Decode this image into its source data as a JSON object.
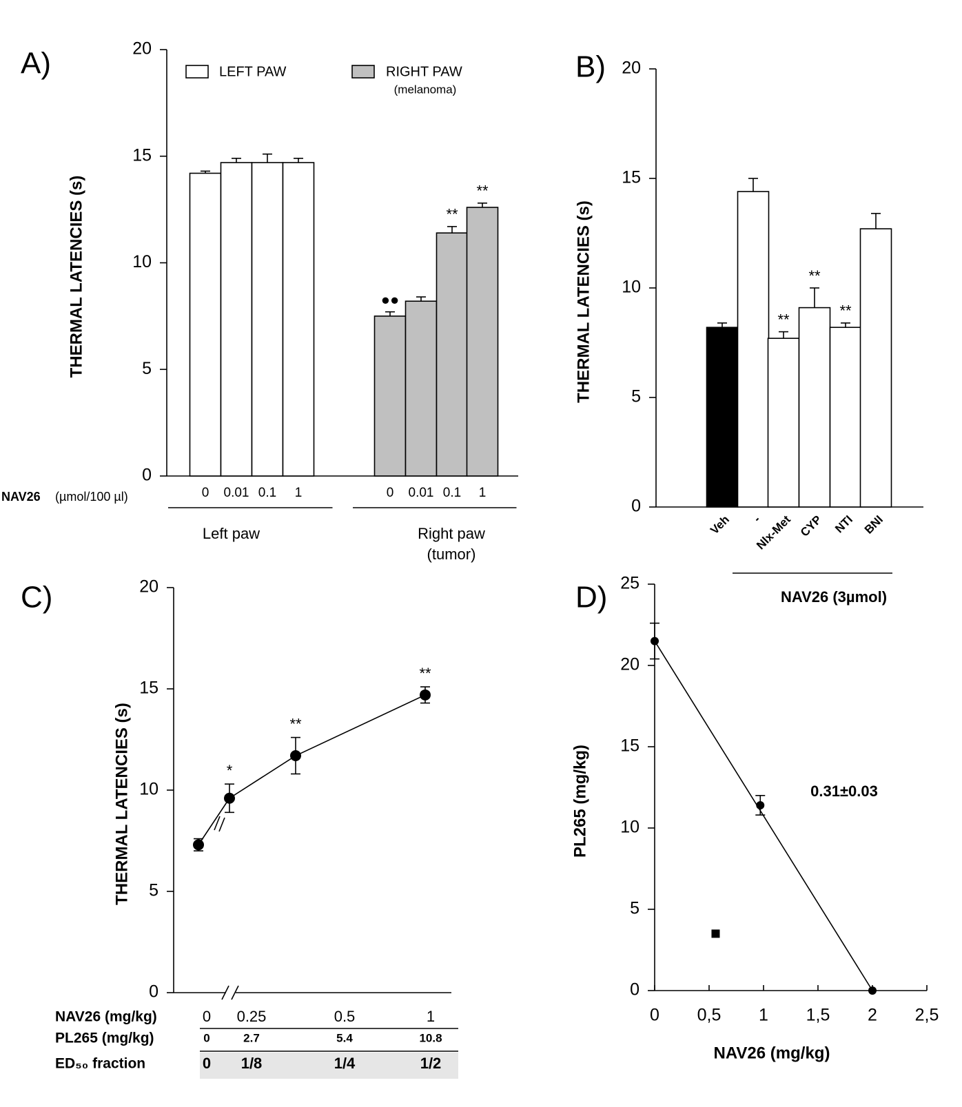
{
  "chart_data": [
    {
      "type": "bar",
      "panel_label": "A)",
      "y_label": "THERMAL LATENCIES (s)",
      "x_label": [
        "NAV26",
        "(µmol/100 µl)"
      ],
      "categories": [
        "0",
        "0.01",
        "0.1",
        "1",
        "0",
        "0.01",
        "0.1",
        "1"
      ],
      "groups": [
        [
          "Left paw"
        ],
        [
          "Right paw",
          "(tumor)"
        ]
      ],
      "series": [
        {
          "name": "LEFT PAW",
          "color": "#ffffff",
          "values": [
            14.2,
            14.7,
            14.7,
            14.7,
            null,
            null,
            null,
            null
          ],
          "errors": [
            0.1,
            0.2,
            0.4,
            0.2,
            null,
            null,
            null,
            null
          ],
          "annotations": [
            null,
            null,
            null,
            null,
            null,
            null,
            null,
            null
          ]
        },
        {
          "name": "RIGHT PAW",
          "legend_note": "(melanoma)",
          "color": "#c0c0c0",
          "values": [
            null,
            null,
            null,
            null,
            7.5,
            8.2,
            11.4,
            12.6
          ],
          "errors": [
            null,
            null,
            null,
            null,
            0.2,
            0.2,
            0.3,
            0.2
          ],
          "annotations": [
            null,
            null,
            null,
            null,
            "●●",
            null,
            "**",
            "**"
          ]
        }
      ],
      "ylim": [
        0,
        20
      ],
      "yticks": [
        0,
        5,
        10,
        15,
        20
      ]
    },
    {
      "type": "bar",
      "panel_label": "B)",
      "y_label": "THERMAL LATENCIES (s)",
      "categories": [
        "Veh",
        "-",
        "Nlx-Met",
        "CYP",
        "NTI",
        "BNI"
      ],
      "values": [
        8.2,
        14.4,
        7.7,
        9.1,
        8.2,
        12.7
      ],
      "errors": [
        0.2,
        0.6,
        0.3,
        0.9,
        0.2,
        0.7
      ],
      "colors": [
        "#000000",
        "#ffffff",
        "#ffffff",
        "#ffffff",
        "#ffffff",
        "#ffffff"
      ],
      "annotations": [
        null,
        null,
        "**",
        "**",
        "**",
        null
      ],
      "group_label": "NAV26 (3µmol)",
      "ylim": [
        0,
        20
      ],
      "yticks": [
        0,
        5,
        10,
        15,
        20
      ]
    },
    {
      "type": "line",
      "panel_label": "C)",
      "y_label": "THERMAL LATENCIES (s)",
      "categories": [
        "0",
        "0.25",
        "0.5",
        "1"
      ],
      "values": [
        7.3,
        9.6,
        11.7,
        14.7
      ],
      "errors": [
        0.3,
        0.7,
        0.9,
        0.4
      ],
      "annotations": [
        null,
        "*",
        "**",
        "**"
      ],
      "color": "#000000",
      "line_color": "#808080",
      "table": {
        "row_labels": [
          "NAV26 (mg/kg)",
          "PL265 (mg/kg)",
          "ED₅₀ fraction"
        ],
        "rows": [
          [
            "0",
            "2.7",
            "5.4",
            "10.8"
          ],
          [
            "0",
            "1/8",
            "1/4",
            "1/2"
          ]
        ]
      },
      "ylim": [
        0,
        20
      ],
      "yticks": [
        0,
        5,
        10,
        15,
        20
      ]
    },
    {
      "type": "scatter",
      "panel_label": "D)",
      "x_label": "NAV26 (mg/kg)",
      "y_label": "PL265 (mg/kg)",
      "series": [
        {
          "marker": "circle",
          "color": "#000000",
          "x": [
            0,
            0.97,
            2
          ],
          "values": [
            21.5,
            11.4,
            0
          ],
          "errors": [
            1.1,
            0.6,
            null
          ]
        },
        {
          "marker": "square",
          "color": "#000000",
          "x": [
            0.56
          ],
          "values": [
            3.5
          ]
        },
        {
          "marker": "line",
          "color": "#808080",
          "x": [
            0,
            2
          ],
          "values": [
            21.5,
            0
          ]
        }
      ],
      "annotation": "0.31±0.03",
      "xlim": [
        0,
        2.5
      ],
      "xticks": [
        0,
        {
          "value": 0.5,
          "label": "0,5"
        },
        1,
        {
          "value": 1.5,
          "label": "1,5"
        },
        2,
        {
          "value": 2.5,
          "label": "2,5"
        }
      ],
      "ylim": [
        0,
        25
      ],
      "yticks": [
        0,
        5,
        10,
        15,
        20,
        25
      ]
    }
  ]
}
